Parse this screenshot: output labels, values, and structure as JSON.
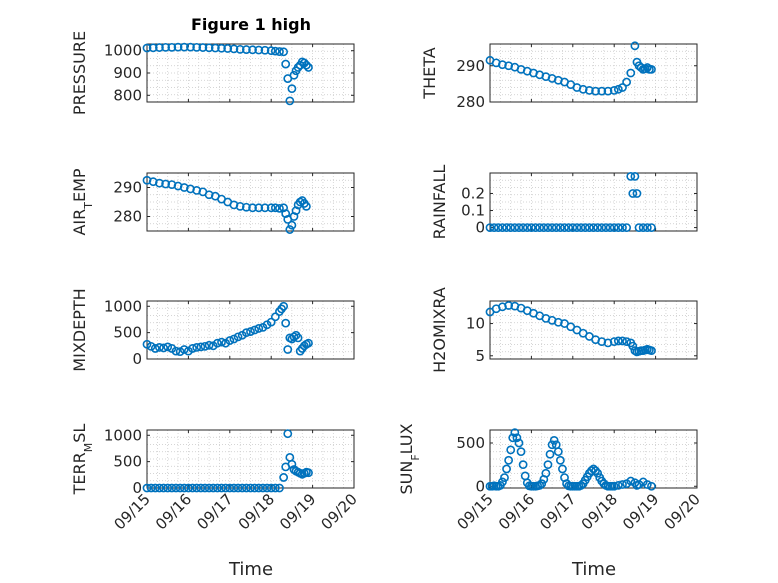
{
  "figure": {
    "title": "Figure 1 high",
    "xlabel": "Time",
    "marker_color": "#0072BD",
    "axis_color": "#262626",
    "grid_color": "#c8c8c8",
    "x_ticklabels": [
      "09/15",
      "09/16",
      "09/17",
      "09/18",
      "09/19",
      "09/20"
    ]
  },
  "chart_data": [
    {
      "type": "scatter",
      "ylabel": "PRESSURE",
      "xlim": [
        0,
        5
      ],
      "ylim": [
        770,
        1030
      ],
      "yticks": [
        800,
        900,
        1000
      ],
      "yticklabels": [
        "800",
        "900",
        "1000"
      ],
      "grid": true,
      "marker": "open-circle",
      "x": [
        0.0,
        0.15,
        0.3,
        0.45,
        0.6,
        0.75,
        0.9,
        1.05,
        1.2,
        1.35,
        1.5,
        1.65,
        1.8,
        1.95,
        2.1,
        2.25,
        2.4,
        2.55,
        2.7,
        2.85,
        3.0,
        3.1,
        3.2,
        3.3,
        3.35,
        3.4,
        3.45,
        3.5,
        3.55,
        3.6,
        3.65,
        3.7,
        3.75,
        3.8,
        3.85,
        3.9
      ],
      "y": [
        1012,
        1013,
        1014,
        1015,
        1015,
        1016,
        1016,
        1016,
        1015,
        1014,
        1013,
        1012,
        1011,
        1010,
        1008,
        1006,
        1005,
        1004,
        1003,
        1002,
        1000,
        998,
        996,
        995,
        940,
        875,
        775,
        830,
        890,
        910,
        925,
        935,
        950,
        945,
        935,
        925
      ]
    },
    {
      "type": "scatter",
      "ylabel": "THETA",
      "xlim": [
        0,
        5
      ],
      "ylim": [
        280,
        296
      ],
      "yticks": [
        280,
        290
      ],
      "yticklabels": [
        "280",
        "290"
      ],
      "grid": true,
      "marker": "open-circle",
      "x": [
        0.0,
        0.15,
        0.3,
        0.45,
        0.6,
        0.75,
        0.9,
        1.05,
        1.2,
        1.35,
        1.5,
        1.65,
        1.8,
        1.95,
        2.1,
        2.25,
        2.4,
        2.55,
        2.7,
        2.85,
        3.0,
        3.1,
        3.2,
        3.3,
        3.4,
        3.5,
        3.55,
        3.6,
        3.65,
        3.7,
        3.75,
        3.8,
        3.85,
        3.9
      ],
      "y": [
        291.5,
        290.8,
        290.3,
        290.0,
        289.6,
        289.0,
        288.5,
        288.0,
        287.5,
        287.0,
        286.5,
        286.0,
        285.5,
        284.8,
        284.0,
        283.5,
        283.2,
        283.0,
        283.0,
        283.0,
        283.2,
        283.5,
        284.0,
        285.5,
        288.0,
        295.5,
        291.0,
        290.0,
        289.5,
        289.0,
        289.2,
        289.5,
        289.0,
        289.0
      ]
    },
    {
      "type": "scatter",
      "ylabel": "AIR_TEMP",
      "xlim": [
        0,
        5
      ],
      "ylim": [
        275,
        295
      ],
      "yticks": [
        280,
        290
      ],
      "yticklabels": [
        "280",
        "290"
      ],
      "grid": true,
      "marker": "open-circle",
      "x": [
        0.0,
        0.15,
        0.3,
        0.45,
        0.6,
        0.75,
        0.9,
        1.05,
        1.2,
        1.35,
        1.5,
        1.65,
        1.8,
        1.95,
        2.1,
        2.25,
        2.4,
        2.55,
        2.7,
        2.85,
        3.0,
        3.1,
        3.2,
        3.3,
        3.35,
        3.4,
        3.45,
        3.5,
        3.55,
        3.6,
        3.65,
        3.7,
        3.75,
        3.8,
        3.85
      ],
      "y": [
        292.5,
        292.0,
        291.5,
        291.2,
        291.0,
        290.5,
        290.0,
        289.5,
        289.0,
        288.5,
        287.5,
        287.0,
        286.0,
        285.0,
        284.0,
        283.5,
        283.2,
        283.0,
        283.0,
        283.0,
        283.0,
        283.0,
        282.8,
        283.0,
        281.0,
        279.0,
        275.5,
        277.0,
        280.0,
        282.0,
        284.0,
        285.0,
        285.5,
        284.5,
        283.5
      ]
    },
    {
      "type": "scatter",
      "ylabel": "RAINFALL",
      "xlim": [
        0,
        5
      ],
      "ylim": [
        -0.02,
        0.32
      ],
      "yticks": [
        0,
        0.1,
        0.2
      ],
      "yticklabels": [
        "0",
        "0.1",
        "0.2"
      ],
      "grid": true,
      "marker": "open-circle",
      "x": [
        0.0,
        0.1,
        0.2,
        0.3,
        0.4,
        0.5,
        0.6,
        0.7,
        0.8,
        0.9,
        1.0,
        1.1,
        1.2,
        1.3,
        1.4,
        1.5,
        1.6,
        1.7,
        1.8,
        1.9,
        2.0,
        2.1,
        2.2,
        2.3,
        2.4,
        2.5,
        2.6,
        2.7,
        2.8,
        2.9,
        3.0,
        3.1,
        3.2,
        3.3,
        3.4,
        3.45,
        3.5,
        3.55,
        3.6,
        3.7,
        3.8,
        3.9
      ],
      "y": [
        0,
        0,
        0,
        0,
        0,
        0,
        0,
        0,
        0,
        0,
        0,
        0,
        0,
        0,
        0,
        0,
        0,
        0,
        0,
        0,
        0,
        0,
        0,
        0,
        0,
        0,
        0,
        0,
        0,
        0,
        0,
        0,
        0,
        0,
        0.3,
        0.2,
        0.3,
        0.2,
        0,
        0,
        0,
        0
      ]
    },
    {
      "type": "scatter",
      "ylabel": "MIXDEPTH",
      "xlim": [
        0,
        5
      ],
      "ylim": [
        0,
        1100
      ],
      "yticks": [
        0,
        500,
        1000
      ],
      "yticklabels": [
        "0",
        "500",
        "1000"
      ],
      "grid": true,
      "marker": "open-circle",
      "x": [
        0.0,
        0.1,
        0.2,
        0.3,
        0.4,
        0.5,
        0.6,
        0.7,
        0.8,
        0.9,
        1.0,
        1.1,
        1.2,
        1.3,
        1.4,
        1.5,
        1.6,
        1.7,
        1.8,
        1.9,
        2.0,
        2.1,
        2.2,
        2.3,
        2.4,
        2.5,
        2.6,
        2.7,
        2.8,
        2.9,
        3.0,
        3.1,
        3.2,
        3.25,
        3.3,
        3.35,
        3.4,
        3.45,
        3.5,
        3.55,
        3.6,
        3.65,
        3.7,
        3.75,
        3.8,
        3.85,
        3.9
      ],
      "y": [
        280,
        240,
        200,
        220,
        210,
        230,
        200,
        150,
        140,
        180,
        150,
        200,
        220,
        230,
        240,
        260,
        250,
        300,
        320,
        300,
        350,
        380,
        420,
        450,
        500,
        520,
        550,
        580,
        600,
        650,
        700,
        800,
        900,
        950,
        1000,
        680,
        180,
        400,
        380,
        420,
        450,
        400,
        150,
        200,
        250,
        280,
        300
      ]
    },
    {
      "type": "scatter",
      "ylabel": "H2OMIXRA",
      "xlim": [
        0,
        5
      ],
      "ylim": [
        4.5,
        13.5
      ],
      "yticks": [
        5,
        10
      ],
      "yticklabels": [
        "5",
        "10"
      ],
      "grid": true,
      "marker": "open-circle",
      "x": [
        0.0,
        0.15,
        0.3,
        0.45,
        0.6,
        0.75,
        0.9,
        1.05,
        1.2,
        1.35,
        1.5,
        1.65,
        1.8,
        1.95,
        2.1,
        2.25,
        2.4,
        2.55,
        2.7,
        2.85,
        3.0,
        3.1,
        3.2,
        3.3,
        3.4,
        3.45,
        3.5,
        3.55,
        3.6,
        3.65,
        3.7,
        3.75,
        3.8,
        3.85,
        3.9
      ],
      "y": [
        11.8,
        12.3,
        12.6,
        12.8,
        12.7,
        12.4,
        12.0,
        11.6,
        11.2,
        10.8,
        10.5,
        10.2,
        10.0,
        9.5,
        9.0,
        8.5,
        8.0,
        7.5,
        7.2,
        7.0,
        7.2,
        7.3,
        7.3,
        7.2,
        7.0,
        6.5,
        5.8,
        5.6,
        5.7,
        5.8,
        5.8,
        5.9,
        6.0,
        5.9,
        5.8
      ]
    },
    {
      "type": "scatter",
      "ylabel": "TERR_MSL",
      "xlim": [
        0,
        5
      ],
      "ylim": [
        0,
        1100
      ],
      "yticks": [
        0,
        500,
        1000
      ],
      "yticklabels": [
        "0",
        "500",
        "1000"
      ],
      "grid": true,
      "marker": "open-circle",
      "x": [
        0.0,
        0.1,
        0.2,
        0.3,
        0.4,
        0.5,
        0.6,
        0.7,
        0.8,
        0.9,
        1.0,
        1.1,
        1.2,
        1.3,
        1.4,
        1.5,
        1.6,
        1.7,
        1.8,
        1.9,
        2.0,
        2.1,
        2.2,
        2.3,
        2.4,
        2.5,
        2.6,
        2.7,
        2.8,
        2.9,
        3.0,
        3.1,
        3.2,
        3.3,
        3.35,
        3.4,
        3.45,
        3.5,
        3.55,
        3.6,
        3.65,
        3.7,
        3.75,
        3.8,
        3.85,
        3.9
      ],
      "y": [
        0,
        0,
        0,
        0,
        0,
        0,
        0,
        0,
        0,
        0,
        0,
        0,
        0,
        0,
        0,
        0,
        0,
        0,
        0,
        0,
        0,
        0,
        0,
        0,
        0,
        0,
        0,
        0,
        0,
        0,
        0,
        0,
        0,
        200,
        400,
        1030,
        580,
        450,
        350,
        320,
        300,
        280,
        260,
        280,
        300,
        290
      ]
    },
    {
      "type": "scatter",
      "ylabel": "SUN_FLUX",
      "xlim": [
        0,
        5
      ],
      "ylim": [
        -20,
        650
      ],
      "yticks": [
        0,
        500
      ],
      "yticklabels": [
        "0",
        "500"
      ],
      "grid": true,
      "marker": "open-circle",
      "x": [
        0.0,
        0.05,
        0.1,
        0.15,
        0.2,
        0.25,
        0.3,
        0.35,
        0.4,
        0.45,
        0.5,
        0.55,
        0.6,
        0.65,
        0.7,
        0.75,
        0.8,
        0.85,
        0.9,
        0.95,
        1.0,
        1.05,
        1.1,
        1.15,
        1.2,
        1.25,
        1.3,
        1.35,
        1.4,
        1.45,
        1.5,
        1.55,
        1.6,
        1.65,
        1.7,
        1.75,
        1.8,
        1.85,
        1.9,
        1.95,
        2.0,
        2.05,
        2.1,
        2.15,
        2.2,
        2.25,
        2.3,
        2.35,
        2.4,
        2.45,
        2.5,
        2.55,
        2.6,
        2.65,
        2.7,
        2.75,
        2.8,
        2.85,
        2.9,
        2.95,
        3.0,
        3.1,
        3.2,
        3.3,
        3.4,
        3.5,
        3.55,
        3.6,
        3.7,
        3.8,
        3.9
      ],
      "y": [
        0,
        0,
        5,
        0,
        0,
        10,
        50,
        100,
        200,
        300,
        420,
        560,
        620,
        560,
        500,
        400,
        250,
        120,
        40,
        5,
        0,
        0,
        0,
        5,
        10,
        30,
        80,
        150,
        250,
        370,
        480,
        530,
        480,
        400,
        300,
        200,
        100,
        30,
        5,
        0,
        0,
        0,
        0,
        0,
        10,
        30,
        70,
        110,
        150,
        180,
        200,
        180,
        150,
        100,
        60,
        30,
        10,
        0,
        0,
        0,
        0,
        10,
        20,
        30,
        60,
        40,
        10,
        20,
        50,
        20,
        0
      ]
    }
  ]
}
